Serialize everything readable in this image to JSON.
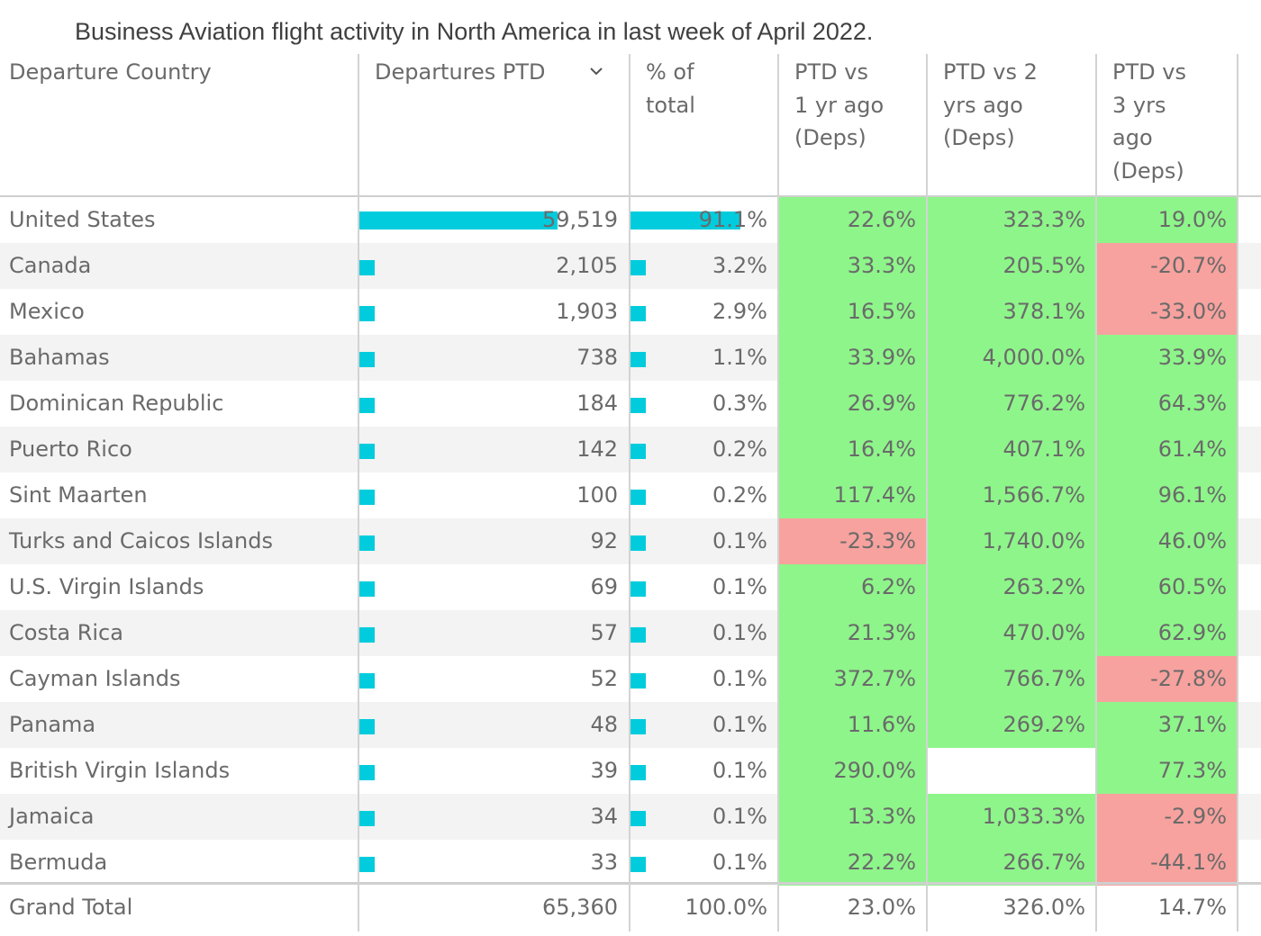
{
  "chart_data": {
    "type": "table",
    "title": "Business Aviation flight activity in North America in last week of April 2022.",
    "columns": [
      "Departure Country",
      "Departures PTD",
      "% of total",
      "PTD vs 1 yr ago (Deps)",
      "PTD vs 2 yrs ago (Deps)",
      "PTD vs 3 yrs ago (Deps)"
    ],
    "headers_wrapped": [
      [
        "Departure Country"
      ],
      [
        "Departures PTD"
      ],
      [
        "% of",
        "total"
      ],
      [
        "PTD vs",
        "1 yr ago",
        "(Deps)"
      ],
      [
        "PTD vs 2",
        "yrs ago",
        "(Deps)"
      ],
      [
        "PTD vs",
        "3 yrs",
        "ago",
        "(Deps)"
      ]
    ],
    "sort_indicator": "chevron-down-icon",
    "rows": [
      {
        "country": "United States",
        "departures": "59,519",
        "departures_value": 59519,
        "pct_total": "91.1%",
        "pct_value": 91.1,
        "vs1": "22.6%",
        "vs1_status": "positive",
        "vs2": "323.3%",
        "vs2_status": "positive",
        "vs3": "19.0%",
        "vs3_status": "positive"
      },
      {
        "country": "Canada",
        "departures": "2,105",
        "departures_value": 2105,
        "pct_total": "3.2%",
        "pct_value": 3.2,
        "vs1": "33.3%",
        "vs1_status": "positive",
        "vs2": "205.5%",
        "vs2_status": "positive",
        "vs3": "-20.7%",
        "vs3_status": "negative"
      },
      {
        "country": "Mexico",
        "departures": "1,903",
        "departures_value": 1903,
        "pct_total": "2.9%",
        "pct_value": 2.9,
        "vs1": "16.5%",
        "vs1_status": "positive",
        "vs2": "378.1%",
        "vs2_status": "positive",
        "vs3": "-33.0%",
        "vs3_status": "negative"
      },
      {
        "country": "Bahamas",
        "departures": "738",
        "departures_value": 738,
        "pct_total": "1.1%",
        "pct_value": 1.1,
        "vs1": "33.9%",
        "vs1_status": "positive",
        "vs2": "4,000.0%",
        "vs2_status": "positive",
        "vs3": "33.9%",
        "vs3_status": "positive"
      },
      {
        "country": "Dominican Republic",
        "departures": "184",
        "departures_value": 184,
        "pct_total": "0.3%",
        "pct_value": 0.3,
        "vs1": "26.9%",
        "vs1_status": "positive",
        "vs2": "776.2%",
        "vs2_status": "positive",
        "vs3": "64.3%",
        "vs3_status": "positive"
      },
      {
        "country": "Puerto Rico",
        "departures": "142",
        "departures_value": 142,
        "pct_total": "0.2%",
        "pct_value": 0.2,
        "vs1": "16.4%",
        "vs1_status": "positive",
        "vs2": "407.1%",
        "vs2_status": "positive",
        "vs3": "61.4%",
        "vs3_status": "positive"
      },
      {
        "country": "Sint Maarten",
        "departures": "100",
        "departures_value": 100,
        "pct_total": "0.2%",
        "pct_value": 0.2,
        "vs1": "117.4%",
        "vs1_status": "positive",
        "vs2": "1,566.7%",
        "vs2_status": "positive",
        "vs3": "96.1%",
        "vs3_status": "positive"
      },
      {
        "country": "Turks and Caicos Islands",
        "departures": "92",
        "departures_value": 92,
        "pct_total": "0.1%",
        "pct_value": 0.1,
        "vs1": "-23.3%",
        "vs1_status": "negative",
        "vs2": "1,740.0%",
        "vs2_status": "positive",
        "vs3": "46.0%",
        "vs3_status": "positive"
      },
      {
        "country": "U.S. Virgin Islands",
        "departures": "69",
        "departures_value": 69,
        "pct_total": "0.1%",
        "pct_value": 0.1,
        "vs1": "6.2%",
        "vs1_status": "positive",
        "vs2": "263.2%",
        "vs2_status": "positive",
        "vs3": "60.5%",
        "vs3_status": "positive"
      },
      {
        "country": "Costa Rica",
        "departures": "57",
        "departures_value": 57,
        "pct_total": "0.1%",
        "pct_value": 0.1,
        "vs1": "21.3%",
        "vs1_status": "positive",
        "vs2": "470.0%",
        "vs2_status": "positive",
        "vs3": "62.9%",
        "vs3_status": "positive"
      },
      {
        "country": "Cayman Islands",
        "departures": "52",
        "departures_value": 52,
        "pct_total": "0.1%",
        "pct_value": 0.1,
        "vs1": "372.7%",
        "vs1_status": "positive",
        "vs2": "766.7%",
        "vs2_status": "positive",
        "vs3": "-27.8%",
        "vs3_status": "negative"
      },
      {
        "country": "Panama",
        "departures": "48",
        "departures_value": 48,
        "pct_total": "0.1%",
        "pct_value": 0.1,
        "vs1": "11.6%",
        "vs1_status": "positive",
        "vs2": "269.2%",
        "vs2_status": "positive",
        "vs3": "37.1%",
        "vs3_status": "positive"
      },
      {
        "country": "British Virgin Islands",
        "departures": "39",
        "departures_value": 39,
        "pct_total": "0.1%",
        "pct_value": 0.1,
        "vs1": "290.0%",
        "vs1_status": "positive",
        "vs2": "",
        "vs2_status": "none",
        "vs3": "77.3%",
        "vs3_status": "positive"
      },
      {
        "country": "Jamaica",
        "departures": "34",
        "departures_value": 34,
        "pct_total": "0.1%",
        "pct_value": 0.1,
        "vs1": "13.3%",
        "vs1_status": "positive",
        "vs2": "1,033.3%",
        "vs2_status": "positive",
        "vs3": "-2.9%",
        "vs3_status": "negative"
      },
      {
        "country": "Bermuda",
        "departures": "33",
        "departures_value": 33,
        "pct_total": "0.1%",
        "pct_value": 0.1,
        "vs1": "22.2%",
        "vs1_status": "positive",
        "vs2": "266.7%",
        "vs2_status": "positive",
        "vs3": "-44.1%",
        "vs3_status": "negative"
      }
    ],
    "total": {
      "country": "Grand Total",
      "departures": "65,360",
      "pct_total": "100.0%",
      "vs1": "23.0%",
      "vs2": "326.0%",
      "vs3": "14.7%"
    },
    "colors": {
      "bar": "#00ccdd",
      "positive": "#8ef58a",
      "negative": "#f7a29e",
      "alt_row": "#f3f3f3",
      "text": "#6a6a6a"
    }
  }
}
